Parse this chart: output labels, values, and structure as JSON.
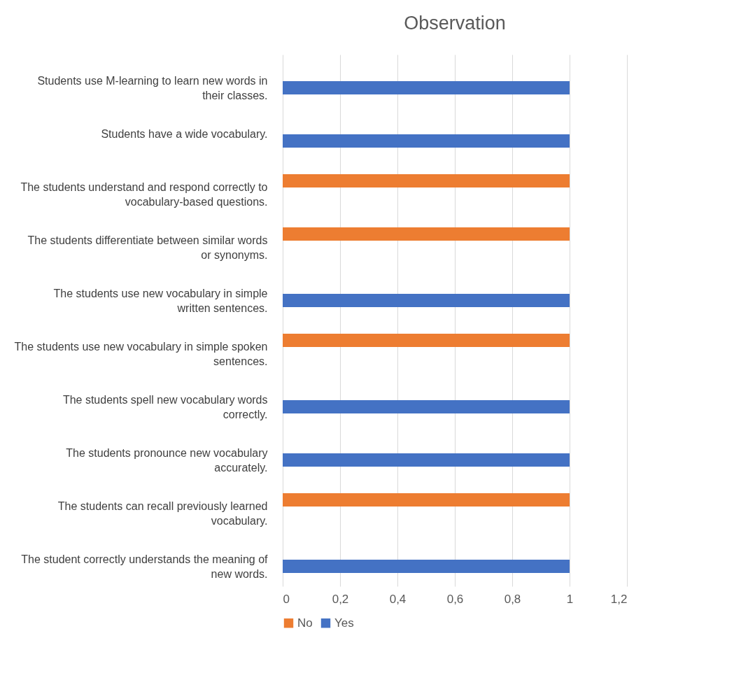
{
  "chart_data": {
    "type": "bar",
    "orientation": "horizontal",
    "title": "Observation",
    "categories": [
      "Students use M-learning to learn new words in their classes.",
      "Students have a wide vocabulary.",
      "The students understand and respond correctly to vocabulary-based questions.",
      "The students differentiate between similar words or synonyms.",
      "The students use new vocabulary in simple written sentences.",
      "The students use new vocabulary in simple spoken sentences.",
      "The students spell new vocabulary words correctly.",
      "The students pronounce new vocabulary accurately.",
      "The students can recall previously learned vocabulary.",
      "The student correctly understands the meaning of new words."
    ],
    "series": [
      {
        "name": "No",
        "color": "#ed7d31",
        "values": [
          null,
          null,
          1,
          1,
          null,
          1,
          null,
          null,
          1,
          null
        ]
      },
      {
        "name": "Yes",
        "color": "#4472c4",
        "values": [
          1,
          1,
          null,
          null,
          1,
          null,
          1,
          1,
          null,
          1
        ]
      }
    ],
    "xlim": [
      0,
      1.2
    ],
    "xticks": [
      0,
      {
        "value": 0.2,
        "label": "0,2"
      },
      {
        "value": 0.4,
        "label": "0,4"
      },
      {
        "value": 0.6,
        "label": "0,6"
      },
      {
        "value": 0.8,
        "label": "0,8"
      },
      1,
      {
        "value": 1.2,
        "label": "1,2"
      }
    ],
    "grid": "x",
    "legend": "bottom"
  }
}
